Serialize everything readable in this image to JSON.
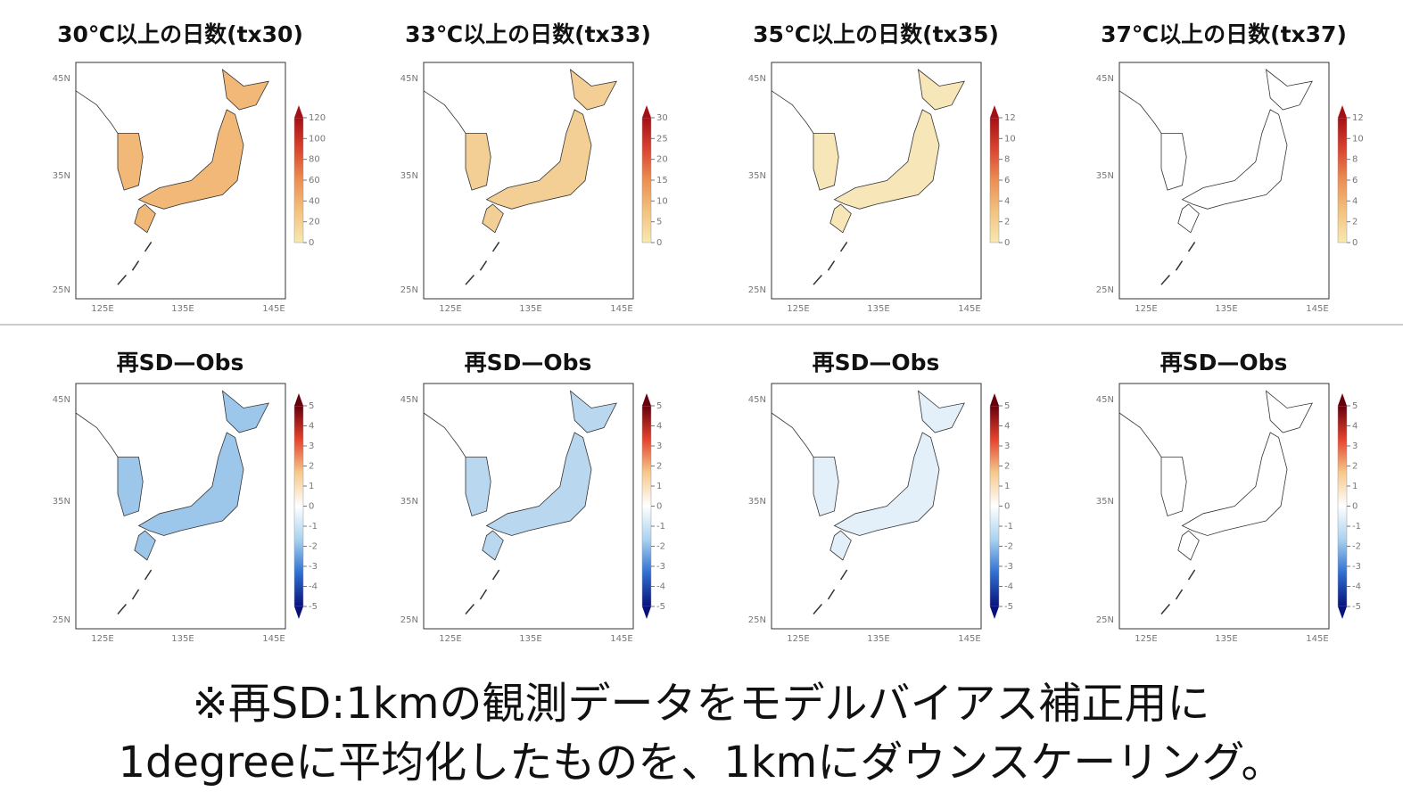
{
  "panels": [
    {
      "title": "30℃以上の日数(tx30)",
      "fill": "#f2b877",
      "colorbar": {
        "lim": [
          0,
          120
        ],
        "ticks": [
          0,
          20,
          40,
          60,
          80,
          100,
          120
        ],
        "colors": [
          "#f7e9b0",
          "#f3c27f",
          "#ec8f52",
          "#d9442f",
          "#a50f15"
        ]
      }
    },
    {
      "title": "33℃以上の日数(tx33)",
      "fill": "#f3cf95",
      "colorbar": {
        "lim": [
          0,
          30
        ],
        "ticks": [
          0,
          5,
          10,
          15,
          20,
          25,
          30
        ],
        "colors": [
          "#f7e9b0",
          "#f3c27f",
          "#ec8f52",
          "#d9442f",
          "#a50f15"
        ]
      }
    },
    {
      "title": "35℃以上の日数(tx35)",
      "fill": "#f7e6b8",
      "colorbar": {
        "lim": [
          0,
          12
        ],
        "ticks": [
          0,
          2,
          4,
          6,
          8,
          10,
          12
        ],
        "colors": [
          "#f7e9b0",
          "#f3c27f",
          "#ec8f52",
          "#d9442f",
          "#a50f15"
        ]
      }
    },
    {
      "title": "37℃以上の日数(tx37)",
      "fill": "#ffffff",
      "colorbar": {
        "lim": [
          0,
          12
        ],
        "ticks": [
          0,
          2,
          4,
          6,
          8,
          10,
          12
        ],
        "colors": [
          "#f7e9b0",
          "#f3c27f",
          "#ec8f52",
          "#d9442f",
          "#a50f15"
        ]
      }
    },
    {
      "title": "再SD—Obs",
      "fill": "#9cc7ea",
      "colorbar": {
        "lim": [
          -5,
          5
        ],
        "ticks": [
          -5,
          -4,
          -3,
          -2,
          -1,
          0,
          1,
          2,
          3,
          4,
          5
        ],
        "colors": [
          "#08127a",
          "#2f6fd0",
          "#a9d2ef",
          "#ffffff",
          "#f6c98b",
          "#e5432d",
          "#67000d"
        ]
      }
    },
    {
      "title": "再SD—Obs",
      "fill": "#b9d8f0",
      "colorbar": {
        "lim": [
          -5,
          5
        ],
        "ticks": [
          -5,
          -4,
          -3,
          -2,
          -1,
          0,
          1,
          2,
          3,
          4,
          5
        ],
        "colors": [
          "#08127a",
          "#2f6fd0",
          "#a9d2ef",
          "#ffffff",
          "#f6c98b",
          "#e5432d",
          "#67000d"
        ]
      }
    },
    {
      "title": "再SD—Obs",
      "fill": "#e3f0fa",
      "colorbar": {
        "lim": [
          -5,
          5
        ],
        "ticks": [
          -5,
          -4,
          -3,
          -2,
          -1,
          0,
          1,
          2,
          3,
          4,
          5
        ],
        "colors": [
          "#08127a",
          "#2f6fd0",
          "#a9d2ef",
          "#ffffff",
          "#f6c98b",
          "#e5432d",
          "#67000d"
        ]
      }
    },
    {
      "title": "再SD—Obs",
      "fill": "#ffffff",
      "colorbar": {
        "lim": [
          -5,
          5
        ],
        "ticks": [
          -5,
          -4,
          -3,
          -2,
          -1,
          0,
          1,
          2,
          3,
          4,
          5
        ],
        "colors": [
          "#08127a",
          "#2f6fd0",
          "#a9d2ef",
          "#ffffff",
          "#f6c98b",
          "#e5432d",
          "#67000d"
        ]
      }
    }
  ],
  "axes": {
    "lat_ticks": [
      "45N",
      "35N",
      "25N"
    ],
    "lon_ticks": [
      "125E",
      "135E",
      "145E"
    ]
  },
  "note": [
    "※再SD:1kmの観測データをモデルバイアス補正用に",
    "1degreeに平均化したものを、1kmにダウンスケーリング。"
  ]
}
